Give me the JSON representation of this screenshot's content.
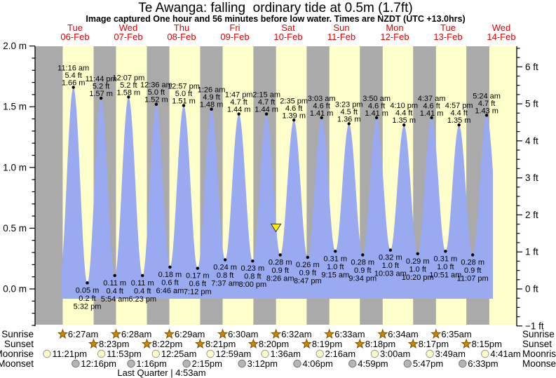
{
  "title": "Te Awanga: falling  ordinary tide at 0.5m (1.7ft)",
  "subtitle": "Image captured One hour and 56 minutes before low water. Times are NZDT (UTC +13.0hrs)",
  "chart_data": {
    "type": "area",
    "title": "Te Awanga: falling  ordinary tide at 0.5m (1.7ft)",
    "ylabel_left": "metres",
    "ylabel_right": "feet",
    "ylim_m": [
      -0.3048,
      2.0
    ],
    "grid": false,
    "legend": "none",
    "colors": {
      "night_band": "#aaaaaa",
      "day_band": "#ffffcc",
      "tide_fill": "#99aaf0",
      "day_label": "#e60000",
      "star_fill": "#cc8800",
      "star_stroke": "#7a5200",
      "moonrise_fill": "#ffffcc",
      "moonrise_stroke": "#999999",
      "moonset_fill": "#b5b5b5",
      "moonset_stroke": "#777777",
      "marker_fill": "#ffee00",
      "axis": "#000000"
    },
    "days": [
      {
        "name": "Tue",
        "date": "06-Feb"
      },
      {
        "name": "Wed",
        "date": "07-Feb"
      },
      {
        "name": "Thu",
        "date": "08-Feb"
      },
      {
        "name": "Fri",
        "date": "09-Feb"
      },
      {
        "name": "Sat",
        "date": "10-Feb"
      },
      {
        "name": "Sun",
        "date": "11-Feb"
      },
      {
        "name": "Mon",
        "date": "12-Feb"
      },
      {
        "name": "Tue",
        "date": "13-Feb"
      },
      {
        "name": "Wed",
        "date": "14-Feb"
      }
    ],
    "y_ticks_left": [
      {
        "label": "2.0 m",
        "v": 2.0
      },
      {
        "label": "1.5 m",
        "v": 1.5
      },
      {
        "label": "1.0 m",
        "v": 1.0
      },
      {
        "label": "0.5 m",
        "v": 0.5
      },
      {
        "label": "0.0 m",
        "v": 0.0
      }
    ],
    "y_ticks_right": [
      {
        "label": "6 ft",
        "ft": 6
      },
      {
        "label": "5 ft",
        "ft": 5
      },
      {
        "label": "4 ft",
        "ft": 4
      },
      {
        "label": "3 ft",
        "ft": 3
      },
      {
        "label": "2 ft",
        "ft": 2
      },
      {
        "label": "1 ft",
        "ft": 1
      },
      {
        "label": "0 ft",
        "ft": 0
      },
      {
        "label": "−1 ft",
        "ft": -1
      }
    ],
    "tide_events": [
      {
        "day": 0,
        "type": "high",
        "time": "11:16 am",
        "m": 1.66,
        "ft": 5.4
      },
      {
        "day": 0,
        "type": "low",
        "time": "5:32 pm",
        "m": 0.05,
        "ft": 0.2
      },
      {
        "day": 0,
        "type": "high",
        "time": "11:44 pm",
        "m": 1.57,
        "ft": 5.2
      },
      {
        "day": 1,
        "type": "low",
        "time": "5:54 am",
        "m": 0.11,
        "ft": 0.4
      },
      {
        "day": 1,
        "type": "high",
        "time": "12:07 pm",
        "m": 1.58,
        "ft": 5.2
      },
      {
        "day": 1,
        "type": "low",
        "time": "6:23 pm",
        "m": 0.11,
        "ft": 0.4
      },
      {
        "day": 2,
        "type": "high",
        "time": "12:36 am",
        "m": 1.52,
        "ft": 5.0
      },
      {
        "day": 2,
        "type": "low",
        "time": "6:46 am",
        "m": 0.18,
        "ft": 0.6
      },
      {
        "day": 2,
        "type": "high",
        "time": "12:57 pm",
        "m": 1.51,
        "ft": 5.0
      },
      {
        "day": 2,
        "type": "low",
        "time": "7:12 pm",
        "m": 0.17,
        "ft": 0.6
      },
      {
        "day": 3,
        "type": "high",
        "time": "1:26 am",
        "m": 1.48,
        "ft": 4.9
      },
      {
        "day": 3,
        "type": "low",
        "time": "7:37 am",
        "m": 0.24,
        "ft": 0.8
      },
      {
        "day": 3,
        "type": "high",
        "time": "1:47 pm",
        "m": 1.44,
        "ft": 4.7
      },
      {
        "day": 3,
        "type": "low",
        "time": "8:00 pm",
        "m": 0.23,
        "ft": 0.8
      },
      {
        "day": 4,
        "type": "high",
        "time": "2:15 am",
        "m": 1.44,
        "ft": 4.7
      },
      {
        "day": 4,
        "type": "low",
        "time": "8:26 am",
        "m": 0.28,
        "ft": 0.9
      },
      {
        "day": 4,
        "type": "high",
        "time": "2:35 pm",
        "m": 1.39,
        "ft": 4.6
      },
      {
        "day": 4,
        "type": "low",
        "time": "8:47 pm",
        "m": 0.26,
        "ft": 0.9
      },
      {
        "day": 5,
        "type": "high",
        "time": "3:03 am",
        "m": 1.41,
        "ft": 4.6
      },
      {
        "day": 5,
        "type": "low",
        "time": "9:15 am",
        "m": 0.31,
        "ft": 1.0
      },
      {
        "day": 5,
        "type": "high",
        "time": "3:23 pm",
        "m": 1.36,
        "ft": 4.5
      },
      {
        "day": 5,
        "type": "low",
        "time": "9:34 pm",
        "m": 0.28,
        "ft": 0.9
      },
      {
        "day": 6,
        "type": "high",
        "time": "3:50 am",
        "m": 1.41,
        "ft": 4.6
      },
      {
        "day": 6,
        "type": "low",
        "time": "10:03 am",
        "m": 0.32,
        "ft": 1.0
      },
      {
        "day": 6,
        "type": "high",
        "time": "4:10 pm",
        "m": 1.35,
        "ft": 4.4
      },
      {
        "day": 6,
        "type": "low",
        "time": "10:20 pm",
        "m": 0.29,
        "ft": 1.0
      },
      {
        "day": 7,
        "type": "high",
        "time": "4:37 am",
        "m": 1.41,
        "ft": 4.6
      },
      {
        "day": 7,
        "type": "low",
        "time": "10:51 am",
        "m": 0.31,
        "ft": 1.0
      },
      {
        "day": 7,
        "type": "high",
        "time": "4:57 pm",
        "m": 1.35,
        "ft": 4.4
      },
      {
        "day": 7,
        "type": "low",
        "time": "11:07 pm",
        "m": 0.28,
        "ft": 0.9
      },
      {
        "day": 8,
        "type": "high",
        "time": "5:24 am",
        "m": 1.43,
        "ft": 4.7
      }
    ],
    "current_marker": {
      "day": 4,
      "time": "6:30 am",
      "height_m": 0.5,
      "direction": "falling"
    },
    "astro": {
      "rows": [
        {
          "label": "Sunrise",
          "icon": "star",
          "events": [
            {
              "day": 0,
              "time": "6:27am"
            },
            {
              "day": 1,
              "time": "6:28am"
            },
            {
              "day": 2,
              "time": "6:29am"
            },
            {
              "day": 3,
              "time": "6:30am"
            },
            {
              "day": 4,
              "time": "6:32am"
            },
            {
              "day": 5,
              "time": "6:33am"
            },
            {
              "day": 6,
              "time": "6:34am"
            },
            {
              "day": 7,
              "time": "6:35am"
            }
          ]
        },
        {
          "label": "Sunset",
          "icon": "star",
          "events": [
            {
              "day": 0,
              "time": "8:23pm"
            },
            {
              "day": 1,
              "time": "8:22pm"
            },
            {
              "day": 2,
              "time": "8:21pm"
            },
            {
              "day": 3,
              "time": "8:20pm"
            },
            {
              "day": 4,
              "time": "8:19pm"
            },
            {
              "day": 5,
              "time": "8:18pm"
            },
            {
              "day": 6,
              "time": "8:17pm"
            },
            {
              "day": 7,
              "time": "8:15pm"
            }
          ]
        },
        {
          "label": "Moonrise",
          "icon": "moon-light",
          "events": [
            {
              "day": -1,
              "time": "11:21pm"
            },
            {
              "day": 0,
              "time": "11:53pm"
            },
            {
              "day": 2,
              "time": "12:25am"
            },
            {
              "day": 3,
              "time": "12:59am"
            },
            {
              "day": 4,
              "time": "1:36am"
            },
            {
              "day": 5,
              "time": "2:16am"
            },
            {
              "day": 6,
              "time": "3:00am"
            },
            {
              "day": 7,
              "time": "3:49am"
            },
            {
              "day": 8,
              "time": "4:41am"
            }
          ]
        },
        {
          "label": "Moonset",
          "icon": "moon-dark",
          "events": [
            {
              "day": 0,
              "time": "12:16pm"
            },
            {
              "day": 1,
              "time": "1:16pm"
            },
            {
              "day": 2,
              "time": "2:15pm"
            },
            {
              "day": 3,
              "time": "3:12pm"
            },
            {
              "day": 4,
              "time": "4:06pm"
            },
            {
              "day": 5,
              "time": "4:59pm"
            },
            {
              "day": 6,
              "time": "5:47pm"
            },
            {
              "day": 7,
              "time": "6:33pm"
            }
          ]
        }
      ],
      "moon_phase": {
        "label": "Last Quarter | 4:53am",
        "day": 2,
        "time": "4:53am"
      }
    }
  }
}
